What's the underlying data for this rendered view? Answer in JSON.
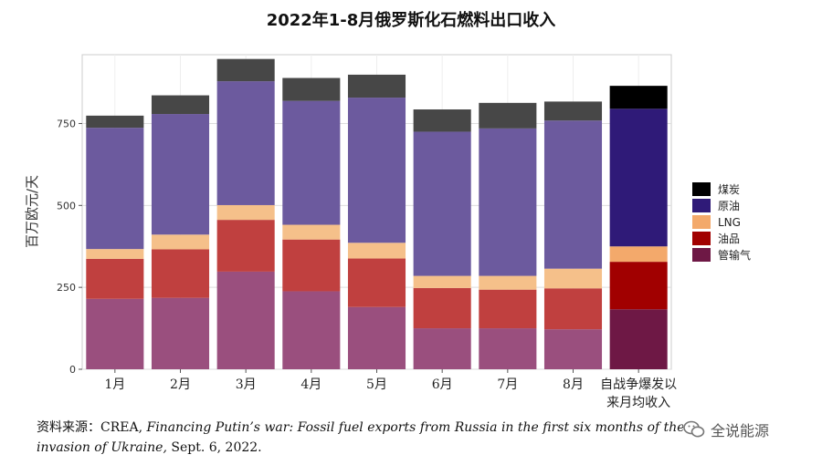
{
  "title": "2022年1-8月俄罗斯化石燃料出口收入",
  "chart_data": {
    "type": "bar",
    "stacked": true,
    "categories": [
      "1月",
      "2月",
      "3月",
      "4月",
      "5月",
      "6月",
      "7月",
      "8月",
      "自战争爆发以来月均收入"
    ],
    "category_lines": [
      [
        "1月"
      ],
      [
        "2月"
      ],
      [
        "3月"
      ],
      [
        "4月"
      ],
      [
        "5月"
      ],
      [
        "6月"
      ],
      [
        "7月"
      ],
      [
        "8月"
      ],
      [
        "自战争爆发以",
        "来月均收入"
      ]
    ],
    "ylabel": "百万欧元/天",
    "ylim": [
      0,
      960
    ],
    "yticks": [
      0,
      250,
      500,
      750
    ],
    "grid": true,
    "legend_position": "right",
    "series": [
      {
        "name": "管输气",
        "color": "#9a4f7e",
        "highlight_color": "#6e1845",
        "values": [
          215,
          218,
          298,
          238,
          190,
          125,
          125,
          122,
          183
        ]
      },
      {
        "name": "油品",
        "color": "#c0403f",
        "highlight_color": "#a10000",
        "values": [
          122,
          148,
          158,
          158,
          148,
          123,
          118,
          125,
          145
        ]
      },
      {
        "name": "LNG",
        "color": "#f5c08a",
        "highlight_color": "#f3a96b",
        "values": [
          30,
          45,
          45,
          45,
          48,
          37,
          42,
          60,
          47
        ]
      },
      {
        "name": "原油",
        "color": "#6c5a9e",
        "highlight_color": "#2f1a78",
        "values": [
          370,
          368,
          378,
          378,
          443,
          440,
          450,
          452,
          420
        ]
      },
      {
        "name": "煤炭",
        "color": "#474747",
        "highlight_color": "#000000",
        "values": [
          37,
          57,
          68,
          70,
          70,
          68,
          78,
          58,
          70
        ]
      }
    ],
    "legend_order": [
      "煤炭",
      "原油",
      "LNG",
      "油品",
      "管输气"
    ]
  },
  "source": {
    "label": "资料来源：",
    "prefix": "CREA, ",
    "report_title": "Financing Putin’s war: Fossil fuel exports from Russia in the first six months of the invasion of Ukraine,",
    "suffix": " Sept. 6, 2022."
  },
  "brand": {
    "text": "全说能源",
    "icon": "wechat-icon"
  }
}
